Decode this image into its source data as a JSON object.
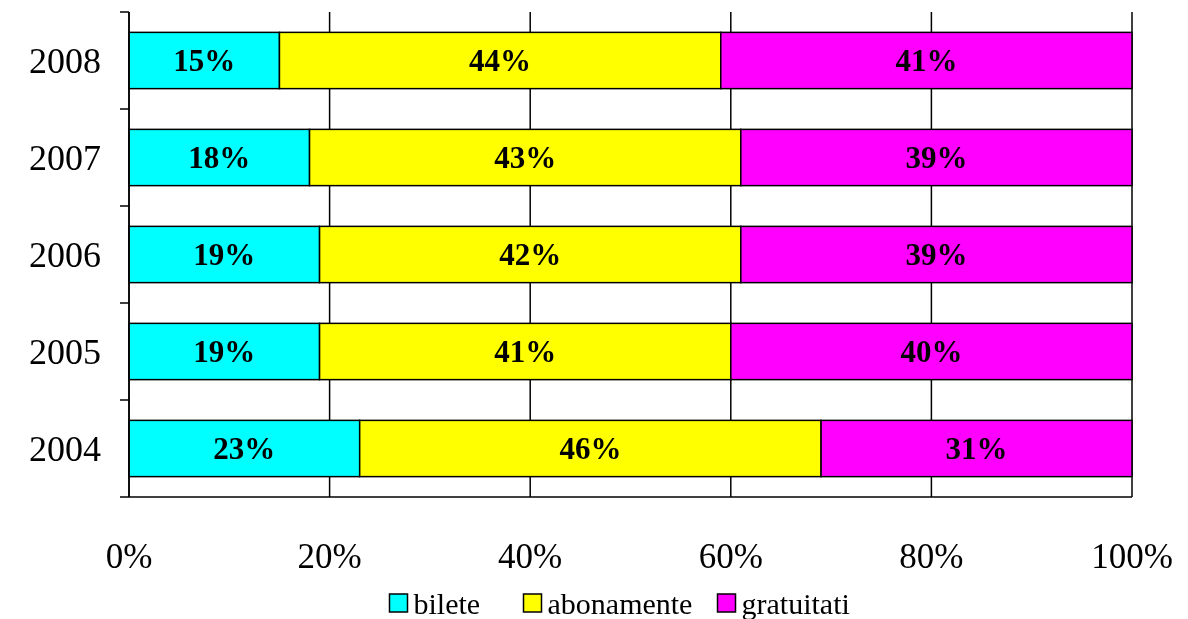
{
  "chart_data": {
    "type": "bar",
    "orientation": "horizontal",
    "stacked": true,
    "categories": [
      "2008",
      "2007",
      "2006",
      "2005",
      "2004"
    ],
    "series": [
      {
        "name": "bilete",
        "color": "#00ffff",
        "values": [
          15,
          18,
          19,
          19,
          23
        ],
        "value_labels": [
          "15%",
          "18%",
          "19%",
          "19%",
          "23%"
        ]
      },
      {
        "name": "abonamente",
        "color": "#ffff00",
        "values": [
          44,
          43,
          42,
          41,
          46
        ],
        "value_labels": [
          "44%",
          "43%",
          "42%",
          "41%",
          "46%"
        ]
      },
      {
        "name": "gratuitati",
        "color": "#ff00ff",
        "values": [
          41,
          39,
          39,
          40,
          31
        ],
        "value_labels": [
          "41%",
          "39%",
          "39%",
          "40%",
          "31%"
        ]
      }
    ],
    "xlim": [
      0,
      100
    ],
    "xticks": [
      {
        "value": 0,
        "label": "0%"
      },
      {
        "value": 20,
        "label": "20%"
      },
      {
        "value": 40,
        "label": "40%"
      },
      {
        "value": 60,
        "label": "60%"
      },
      {
        "value": 80,
        "label": "80%"
      },
      {
        "value": 100,
        "label": "100%"
      }
    ],
    "grid": "x",
    "legend": "bottom"
  }
}
